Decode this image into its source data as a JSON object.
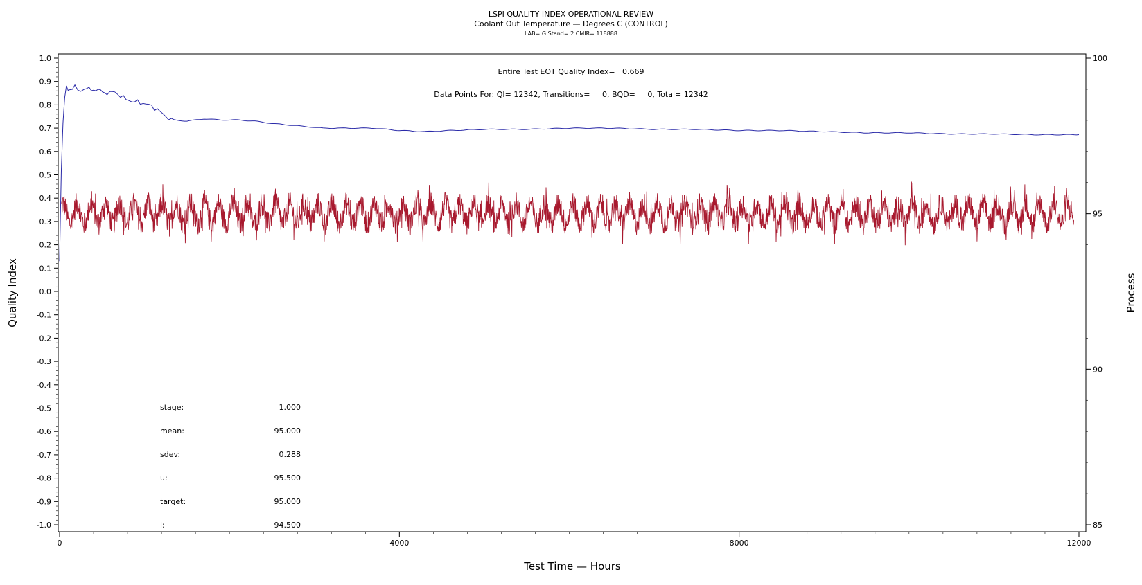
{
  "chart_data": {
    "type": "line",
    "title": "LSPI QUALITY INDEX OPERATIONAL REVIEW",
    "subtitle": "Coolant Out Temperature — Degrees C (CONTROL)",
    "subtitle2": "LAB= G Stand= 2 CMIR= 118888",
    "xlabel": "Test Time — Hours",
    "ylabel": "Quality Index",
    "y2label": "Process",
    "xlim": [
      0,
      12000
    ],
    "ylim": [
      -1.0,
      1.0
    ],
    "y2lim": [
      85,
      100
    ],
    "x_ticks": [
      "0",
      "4000",
      "8000",
      "12000"
    ],
    "y_ticks": [
      "1.0",
      "0.9",
      "0.8",
      "0.7",
      "0.6",
      "0.5",
      "0.4",
      "0.3",
      "0.2",
      "0.1",
      "0.0",
      "-0.1",
      "-0.2",
      "-0.3",
      "-0.4",
      "-0.5",
      "-0.6",
      "-0.7",
      "-0.8",
      "-0.9",
      "-1.0"
    ],
    "y2_ticks": [
      "100",
      "95",
      "90",
      "85"
    ],
    "grid": false,
    "annotations": {
      "eot": "Entire Test EOT Quality Index=   0.669",
      "points": "Data Points For: QI= 12342, Transitions=     0, BQD=     0, Total= 12342"
    },
    "stats": [
      {
        "label": "stage:",
        "value": "1.000"
      },
      {
        "label": "mean:",
        "value": "95.000"
      },
      {
        "label": "sdev:",
        "value": "0.288"
      },
      {
        "label": "u:",
        "value": "95.500"
      },
      {
        "label": "target:",
        "value": "95.000"
      },
      {
        "label": "l:",
        "value": "94.500"
      }
    ],
    "series": [
      {
        "axis": "left",
        "color": "#2a2aa8",
        "x": [
          0,
          20,
          40,
          60,
          80,
          120,
          180,
          250,
          320,
          400,
          480,
          560,
          650,
          750,
          850,
          950,
          1050,
          1150,
          1250,
          1350,
          1500,
          1700,
          1900,
          2100,
          2300,
          2500,
          2800,
          3100,
          3400,
          3700,
          4000,
          4300,
          4600,
          5000,
          5500,
          6000,
          6500,
          7000,
          7500,
          8000,
          8500,
          9000,
          9500,
          10000,
          10500,
          11000,
          11500,
          12000
        ],
        "values": [
          0.13,
          0.52,
          0.72,
          0.83,
          0.88,
          0.865,
          0.875,
          0.86,
          0.87,
          0.865,
          0.86,
          0.85,
          0.855,
          0.83,
          0.815,
          0.81,
          0.8,
          0.78,
          0.75,
          0.735,
          0.73,
          0.74,
          0.735,
          0.735,
          0.73,
          0.72,
          0.71,
          0.7,
          0.7,
          0.7,
          0.69,
          0.685,
          0.69,
          0.695,
          0.695,
          0.7,
          0.7,
          0.695,
          0.695,
          0.69,
          0.69,
          0.685,
          0.68,
          0.68,
          0.675,
          0.675,
          0.672,
          0.672
        ]
      },
      {
        "axis": "right",
        "color": "#a8192e",
        "mean": 95.0,
        "sdev": 0.288,
        "cycles": 72
      }
    ]
  }
}
